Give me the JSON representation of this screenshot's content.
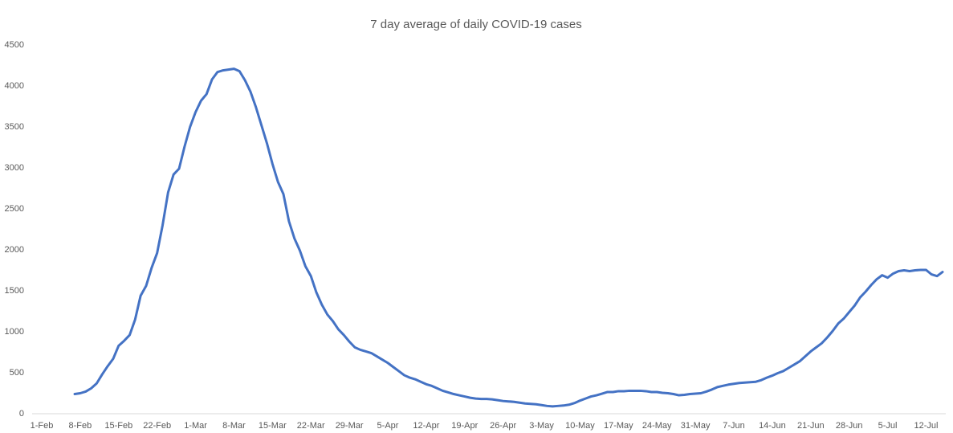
{
  "chart_data": {
    "type": "line",
    "title": "7 day average of daily COVID-19 cases",
    "categories": [
      "1-Feb",
      null,
      null,
      null,
      null,
      null,
      null,
      "8-Feb",
      null,
      null,
      null,
      null,
      null,
      null,
      "15-Feb",
      null,
      null,
      null,
      null,
      null,
      null,
      "22-Feb",
      null,
      null,
      null,
      null,
      null,
      null,
      "1-Mar",
      null,
      null,
      null,
      null,
      null,
      null,
      "8-Mar",
      null,
      null,
      null,
      null,
      null,
      null,
      "15-Mar",
      null,
      null,
      null,
      null,
      null,
      null,
      "22-Mar",
      null,
      null,
      null,
      null,
      null,
      null,
      "29-Mar",
      null,
      null,
      null,
      null,
      null,
      null,
      "5-Apr",
      null,
      null,
      null,
      null,
      null,
      null,
      "12-Apr",
      null,
      null,
      null,
      null,
      null,
      null,
      "19-Apr",
      null,
      null,
      null,
      null,
      null,
      null,
      "26-Apr",
      null,
      null,
      null,
      null,
      null,
      null,
      "3-May",
      null,
      null,
      null,
      null,
      null,
      null,
      "10-May",
      null,
      null,
      null,
      null,
      null,
      null,
      "17-May",
      null,
      null,
      null,
      null,
      null,
      null,
      "24-May",
      null,
      null,
      null,
      null,
      null,
      null,
      "31-May",
      null,
      null,
      null,
      null,
      null,
      null,
      "7-Jun",
      null,
      null,
      null,
      null,
      null,
      null,
      "14-Jun",
      null,
      null,
      null,
      null,
      null,
      null,
      "21-Jun",
      null,
      null,
      null,
      null,
      null,
      null,
      "28-Jun",
      null,
      null,
      null,
      null,
      null,
      null,
      "5-Jul",
      null,
      null,
      null,
      null,
      null,
      null,
      "12-Jul",
      null,
      null,
      null
    ],
    "values": [
      null,
      null,
      null,
      null,
      null,
      null,
      240,
      250,
      270,
      310,
      370,
      480,
      580,
      670,
      830,
      890,
      960,
      1150,
      1440,
      1560,
      1780,
      1960,
      2300,
      2700,
      2920,
      2990,
      3260,
      3500,
      3680,
      3820,
      3900,
      4080,
      4170,
      4190,
      4200,
      4210,
      4180,
      4070,
      3930,
      3740,
      3520,
      3300,
      3050,
      2830,
      2680,
      2350,
      2140,
      1990,
      1800,
      1680,
      1480,
      1330,
      1210,
      1130,
      1030,
      960,
      880,
      810,
      780,
      760,
      740,
      700,
      660,
      620,
      570,
      520,
      470,
      440,
      420,
      390,
      360,
      340,
      310,
      280,
      260,
      240,
      225,
      210,
      195,
      185,
      180,
      180,
      175,
      165,
      155,
      150,
      145,
      135,
      125,
      120,
      115,
      105,
      95,
      90,
      95,
      100,
      110,
      130,
      160,
      185,
      210,
      225,
      245,
      265,
      265,
      275,
      275,
      280,
      280,
      280,
      275,
      265,
      265,
      255,
      250,
      240,
      225,
      230,
      240,
      245,
      250,
      270,
      295,
      325,
      340,
      355,
      365,
      375,
      380,
      385,
      390,
      410,
      440,
      465,
      495,
      520,
      560,
      600,
      640,
      700,
      760,
      810,
      860,
      930,
      1010,
      1100,
      1160,
      1240,
      1320,
      1420,
      1490,
      1570,
      1640,
      1690,
      1660,
      1710,
      1740,
      1750,
      1740,
      1750,
      1755,
      1755,
      1700,
      1680,
      1730
    ],
    "color": "#4472c4",
    "ylim": [
      0,
      4500
    ],
    "yticks": [
      0,
      500,
      1000,
      1500,
      2000,
      2500,
      3000,
      3500,
      4000,
      4500
    ],
    "grid": false
  }
}
